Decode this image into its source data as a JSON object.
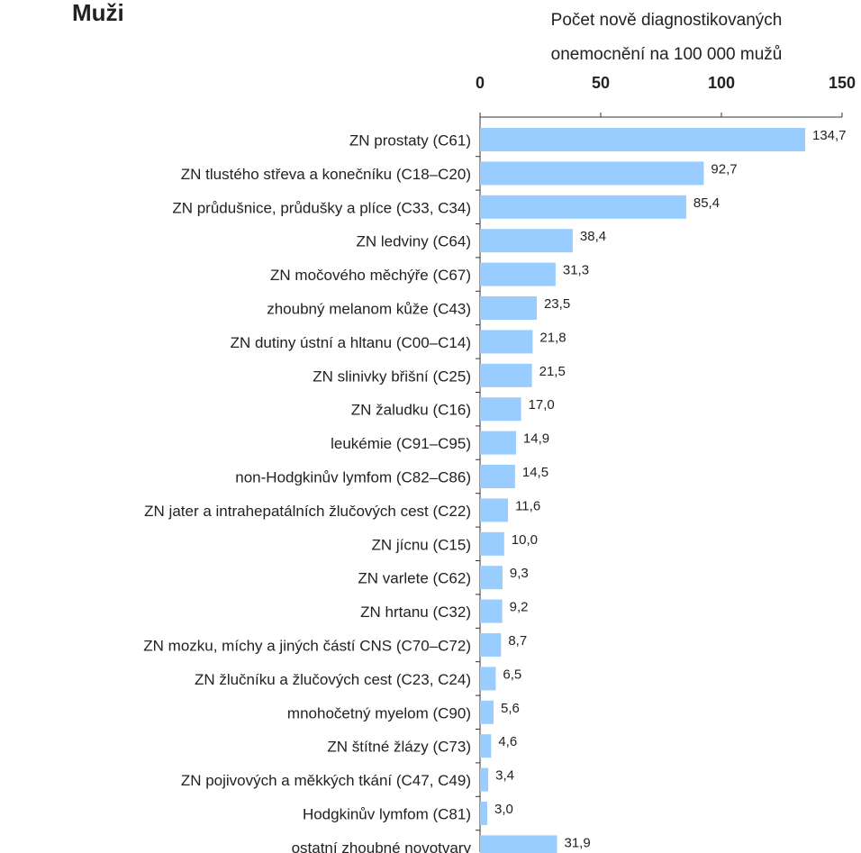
{
  "chart_data": {
    "type": "bar",
    "orientation": "horizontal",
    "title": "Muži",
    "xlabel": [
      "Počet nově diagnostikovaných",
      "onemocnění na 100 000 mužů"
    ],
    "categories": [
      "ZN prostaty (C61)",
      "ZN tlustého střeva a konečníku (C18–C20)",
      "ZN průdušnice, průdušky a plíce (C33, C34)",
      "ZN ledviny (C64)",
      "ZN močového měchýře (C67)",
      "zhoubný melanom kůže (C43)",
      "ZN dutiny ústní a hltanu (C00–C14)",
      "ZN slinivky břišní (C25)",
      "ZN žaludku (C16)",
      "leukémie (C91–C95)",
      "non-Hodgkinův lymfom (C82–C86)",
      "ZN jater a intrahepatálních žlučových cest (C22)",
      "ZN jícnu (C15)",
      "ZN varlete (C62)",
      "ZN hrtanu (C32)",
      "ZN mozku, míchy a jiných částí CNS (C70–C72)",
      "ZN žlučníku a žlučových cest (C23, C24)",
      "mnohočetný myelom (C90)",
      "ZN štítné žlázy (C73)",
      "ZN pojivových a měkkých tkání (C47, C49)",
      "Hodgkinův lymfom (C81)",
      "ostatní zhoubné novotvary"
    ],
    "values": [
      134.7,
      92.7,
      85.4,
      38.4,
      31.3,
      23.5,
      21.8,
      21.5,
      17.0,
      14.9,
      14.5,
      11.6,
      10.0,
      9.3,
      9.2,
      8.7,
      6.5,
      5.6,
      4.6,
      3.4,
      3.0,
      31.9
    ],
    "value_labels": [
      "134,7",
      "92,7",
      "85,4",
      "38,4",
      "31,3",
      "23,5",
      "21,8",
      "21,5",
      "17,0",
      "14,9",
      "14,5",
      "11,6",
      "10,0",
      "9,3",
      "9,2",
      "8,7",
      "6,5",
      "5,6",
      "4,6",
      "3,4",
      "3,0",
      "31,9"
    ],
    "color": "#99ccff",
    "xlim": [
      0,
      150
    ],
    "xticks": [
      0,
      50,
      100,
      150
    ]
  }
}
